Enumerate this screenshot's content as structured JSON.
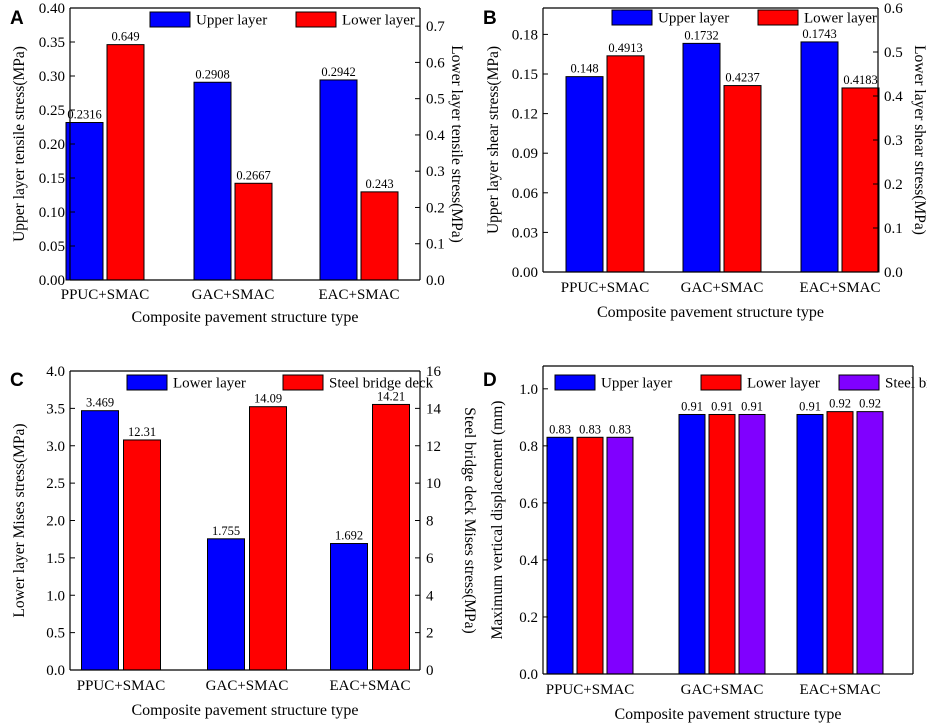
{
  "chart_data": [
    {
      "panel": "A",
      "type": "bar",
      "categories": [
        "PPUC+SMAC",
        "GAC+SMAC",
        "EAC+SMAC"
      ],
      "xlabel": "Composite pavement structure type",
      "ylabel": "Upper layer tensile stress(MPa)",
      "y2label": "Lower layer tensile stress(MPa)",
      "ylim": [
        0,
        0.4
      ],
      "yticks": [
        "0.00",
        "0.05",
        "0.10",
        "0.15",
        "0.20",
        "0.25",
        "0.30",
        "0.35",
        "0.40"
      ],
      "y2lim": [
        0,
        0.75
      ],
      "y2ticks": [
        "0.0",
        "0.1",
        "0.2",
        "0.3",
        "0.4",
        "0.5",
        "0.6",
        "0.7"
      ],
      "series": [
        {
          "name": "Upper layer",
          "axis": "left",
          "color": "#0000ff",
          "values": [
            0.2316,
            0.2908,
            0.2942
          ],
          "labels": [
            "0.2316",
            "0.2908",
            "0.2942"
          ]
        },
        {
          "name": "Lower layer",
          "axis": "right",
          "color": "#ff0000",
          "values": [
            0.649,
            0.2667,
            0.243
          ],
          "labels": [
            "0.649",
            "0.2667",
            "0.243"
          ]
        }
      ]
    },
    {
      "panel": "B",
      "type": "bar",
      "categories": [
        "PPUC+SMAC",
        "GAC+SMAC",
        "EAC+SMAC"
      ],
      "xlabel": "Composite pavement structure type",
      "ylabel": "Upper layer shear stress(MPa)",
      "y2label": "Lower layer shear stress(MPa)",
      "ylim": [
        0,
        0.2
      ],
      "yticks": [
        "0.00",
        "0.03",
        "0.06",
        "0.09",
        "0.12",
        "0.15",
        "0.18"
      ],
      "y2lim": [
        0,
        0.6
      ],
      "y2ticks": [
        "0.0",
        "0.1",
        "0.2",
        "0.3",
        "0.4",
        "0.5",
        "0.6"
      ],
      "series": [
        {
          "name": "Upper layer",
          "axis": "left",
          "color": "#0000ff",
          "values": [
            0.148,
            0.1732,
            0.1743
          ],
          "labels": [
            "0.148",
            "0.1732",
            "0.1743"
          ]
        },
        {
          "name": "Lower layer",
          "axis": "right",
          "color": "#ff0000",
          "values": [
            0.4913,
            0.4237,
            0.4183
          ],
          "labels": [
            "0.4913",
            "0.4237",
            "0.4183"
          ]
        }
      ]
    },
    {
      "panel": "C",
      "type": "bar",
      "categories": [
        "PPUC+SMAC",
        "GAC+SMAC",
        "EAC+SMAC"
      ],
      "xlabel": "Composite pavement structure type",
      "ylabel": "Lower layer Mises stress(MPa)",
      "y2label": "Steel bridge deck Mises stress(MPa)",
      "ylim": [
        0,
        4.0
      ],
      "yticks": [
        "0.0",
        "0.5",
        "1.0",
        "1.5",
        "2.0",
        "2.5",
        "3.0",
        "3.5",
        "4.0"
      ],
      "y2lim": [
        0,
        16
      ],
      "y2ticks": [
        "0",
        "2",
        "4",
        "6",
        "8",
        "10",
        "12",
        "14",
        "16"
      ],
      "series": [
        {
          "name": "Lower layer",
          "axis": "left",
          "color": "#0000ff",
          "values": [
            3.469,
            1.755,
            1.692
          ],
          "labels": [
            "3.469",
            "1.755",
            "1.692"
          ]
        },
        {
          "name": "Steel bridge deck",
          "axis": "right",
          "color": "#ff0000",
          "values": [
            12.31,
            14.09,
            14.21
          ],
          "labels": [
            "12.31",
            "14.09",
            "14.21"
          ]
        }
      ]
    },
    {
      "panel": "D",
      "type": "bar",
      "categories": [
        "PPUC+SMAC",
        "GAC+SMAC",
        "EAC+SMAC"
      ],
      "xlabel": "Composite pavement structure type",
      "ylabel": "Maximum vertical displacement (mm)",
      "ylim": [
        0,
        1.08
      ],
      "yticks": [
        "0.0",
        "0.2",
        "0.4",
        "0.6",
        "0.8",
        "1.0"
      ],
      "series": [
        {
          "name": "Upper layer",
          "axis": "left",
          "color": "#0000ff",
          "values": [
            0.83,
            0.91,
            0.91
          ],
          "labels": [
            "0.83",
            "0.91",
            "0.91"
          ]
        },
        {
          "name": "Lower layer",
          "axis": "left",
          "color": "#ff0000",
          "values": [
            0.83,
            0.91,
            0.92
          ],
          "labels": [
            "0.83",
            "0.91",
            "0.92"
          ]
        },
        {
          "name": "Steel bridge deck",
          "axis": "left",
          "color": "#8000ff",
          "values": [
            0.83,
            0.91,
            0.92
          ],
          "labels": [
            "0.83",
            "0.91",
            "0.92"
          ]
        }
      ]
    }
  ]
}
